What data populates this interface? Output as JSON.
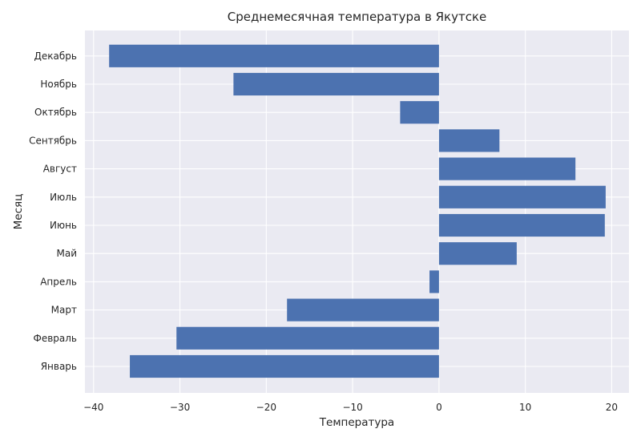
{
  "chart_data": {
    "type": "bar",
    "orientation": "horizontal",
    "title": "Среднемесячная температура в Якутске",
    "xlabel": "Температура",
    "ylabel": "Месяц",
    "categories": [
      "Январь",
      "Февраль",
      "Март",
      "Апрель",
      "Май",
      "Июнь",
      "Июль",
      "Август",
      "Сентябрь",
      "Октябрь",
      "Ноябрь",
      "Декабрь"
    ],
    "values": [
      -35.8,
      -30.4,
      -17.6,
      -1.1,
      9.0,
      19.2,
      19.3,
      15.8,
      7.0,
      -4.5,
      -23.8,
      -38.2
    ],
    "xlim": [
      -41,
      22
    ],
    "xticks": [
      -40,
      -30,
      -20,
      -10,
      0,
      10,
      20
    ],
    "xtick_labels": [
      "−40",
      "−30",
      "−20",
      "−10",
      "0",
      "10",
      "20"
    ],
    "grid": true,
    "colors": {
      "bar": "#4c72b0",
      "plot_background": "#eaeaf2",
      "grid": "#ffffff",
      "text": "#262626"
    }
  }
}
